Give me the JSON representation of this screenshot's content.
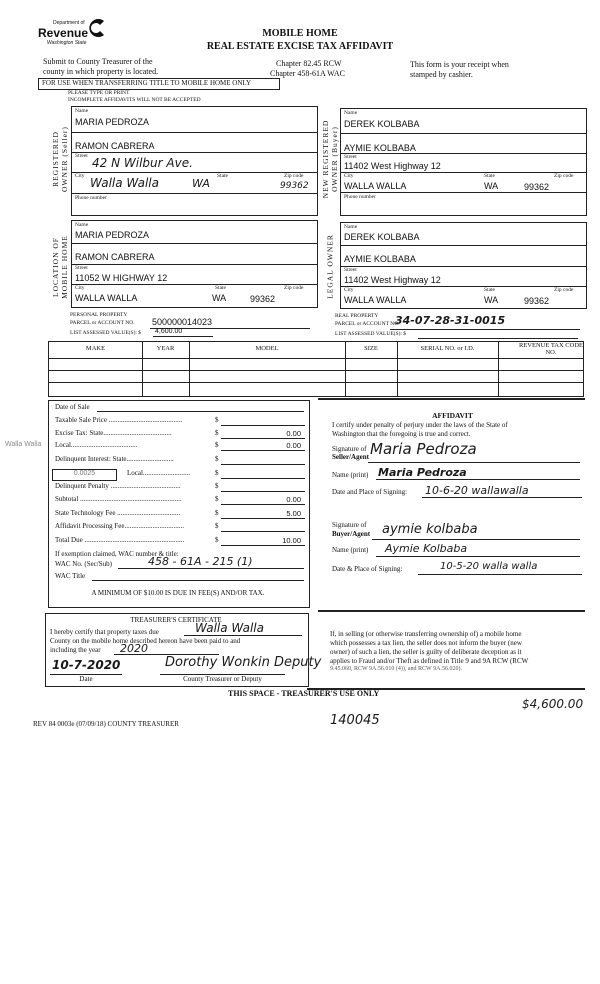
{
  "header": {
    "logo": {
      "line1": "Department of",
      "line2": "Revenue",
      "line3": "Washington State"
    },
    "title_line1": "MOBILE HOME",
    "title_line2": "REAL ESTATE EXCISE TAX AFFIDAVIT",
    "submit_line1": "Submit to County Treasurer of the",
    "submit_line2": "county in which property is located.",
    "chapter1": "Chapter 82.45 RCW",
    "chapter2": "Chapter 458-61A WAC",
    "receipt_line1": "This form is your receipt when",
    "receipt_line2": "stamped by cashier.",
    "transfer_notice": "FOR USE WHEN TRANSFERRING TITLE TO MOBILE HOME ONLY",
    "type_notice": "PLEASE TYPE OR PRINT",
    "incomplete_notice": "INCOMPLETE AFFIDAVITS WILL NOT BE ACCEPTED"
  },
  "labels": {
    "name": "Name",
    "street": "Street",
    "city": "City",
    "state": "State",
    "zip": "Zip code",
    "phone": "Phone number"
  },
  "seller": {
    "section_label_1": "REGISTERED",
    "section_label_2": "OWNER (Seller)",
    "name1": "MARIA PEDROZA",
    "name2": "RAMON CABRERA",
    "street": "42 N Wilbur Ave.",
    "city": "Walla Walla",
    "state": "WA",
    "zip": "99362",
    "phone": ""
  },
  "buyer": {
    "section_label_1": "NEW REGISTERED",
    "section_label_2": "OWNER (Buyer)",
    "name1": "DEREK KOLBABA",
    "name2": "AYMIE KOLBABA",
    "street": "11402 West Highway 12",
    "city": "WALLA WALLA",
    "state": "WA",
    "zip": "99362",
    "phone": ""
  },
  "location": {
    "section_label_1": "LOCATION OF",
    "section_label_2": "MOBILE HOME",
    "name1": "MARIA PEDROZA",
    "name2": "RAMON CABRERA",
    "street": "11052 W HIGHWAY 12",
    "city": "WALLA WALLA",
    "state": "WA",
    "zip": "99362"
  },
  "legal_owner": {
    "section_label": "LEGAL OWNER",
    "name1": "DEREK KOLBABA",
    "name2": "AYMIE KOLBABA",
    "street": "11402 West Highway 12",
    "city": "WALLA WALLA",
    "state": "WA",
    "zip": "99362"
  },
  "personal_property": {
    "heading": "PERSONAL PROPERTY",
    "parcel_label": "PARCEL or ACCOUNT NO.",
    "parcel_value": "500000014023",
    "assessed_label": "LIST ASSESSED VALUE(S): $",
    "assessed_value": "4,600.00"
  },
  "real_property": {
    "heading": "REAL PROPERTY",
    "parcel_label": "PARCEL or ACCOUNT NO.",
    "parcel_value": "34-07-28-31-0015",
    "assessed_label": "LIST ASSESSED VALUE(S): $",
    "assessed_value": ""
  },
  "home_table": {
    "columns": [
      "MAKE",
      "YEAR",
      "MODEL",
      "SIZE",
      "SERIAL NO. or I.D.",
      "REVENUE TAX CODE NO."
    ],
    "rows": [
      [
        "",
        "",
        "",
        "",
        "",
        ""
      ],
      [
        "",
        "",
        "",
        "",
        "",
        ""
      ],
      [
        "",
        "",
        "",
        "",
        "",
        ""
      ]
    ]
  },
  "fees": {
    "date_of_sale_label": "Date of Sale",
    "date_of_sale": "",
    "side_note": "Walla Walla",
    "rate_box": "0.0025",
    "items": [
      {
        "label": "Taxable Sale Price ..........................................",
        "value": ""
      },
      {
        "label": "Excise Tax:   State.......................................",
        "value": "0.00"
      },
      {
        "label": "                    Local......................................",
        "value": "0.00"
      },
      {
        "label": "Delinquent Interest:   State...........................",
        "value": ""
      },
      {
        "label": "                               Local...........................",
        "value": ""
      },
      {
        "label": "Delinquent Penalty ........................................",
        "value": ""
      },
      {
        "label": "Subtotal ..........................................................",
        "value": "0.00"
      },
      {
        "label": "State Technology Fee ....................................",
        "value": "5.00"
      },
      {
        "label": "Affidavit Processing Fee..................................",
        "value": ""
      },
      {
        "label": "Total Due .........................................................",
        "value": "10.00"
      }
    ],
    "dollar": "$",
    "exemption_label": "If exemption claimed, WAC number & title:",
    "wac_no_label": "WAC No. (Sec/Sub)",
    "wac_no_value": "458 - 61A - 215 (1)",
    "wac_title_label": "WAC Title",
    "wac_title_value": "",
    "minimum_notice": "A MINIMUM OF $10.00 IS DUE IN FEE(S) AND/OR TAX."
  },
  "affidavit": {
    "heading": "AFFIDAVIT",
    "certify_line1": "I certify under penalty of perjury under the laws of the State of",
    "certify_line2": "Washington that the foregoing is true and correct.",
    "seller_sig_label1": "Signature of",
    "seller_sig_label2": "Seller/Agent",
    "seller_signature": "Maria Pedroza",
    "name_print_label": "Name (print)",
    "seller_name_print": "Maria Pedroza",
    "seller_date_label": "Date and Place of Signing:",
    "seller_date_place": "10-6-20  wallawalla",
    "buyer_sig_label1": "Signature of",
    "buyer_sig_label2": "Buyer/Agent",
    "buyer_signature": "aymie kolbaba",
    "buyer_name_print": "Aymie Kolbaba",
    "buyer_date_label": "Date & Place of Signing:",
    "buyer_date_place": "10-5-20  walla walla"
  },
  "treasurer": {
    "heading": "TREASURER'S CERTIFICATE",
    "line1": "I hereby certify that property taxes due",
    "county_value": "Walla Walla",
    "line2": "County on the mobile home described hereon have been paid to and",
    "line3": "including the year",
    "year_value": "2020",
    "date_value": "10-7-2020",
    "date_label": "Date",
    "signature": "Dorothy Wonkin Deputy",
    "signer_label": "County Treasurer or Deputy",
    "use_only": "THIS SPACE - TREASURER'S USE ONLY"
  },
  "lien_notice": [
    "If, in selling (or otherwise transferring ownership of) a mobile home",
    "which possesses a tax lien, the seller does not inform the buyer (new",
    "owner) of such a lien, the seller is guilty of deliberate deception as it",
    "applies to Fraud and/or Theft as defined in Title 9 and 9A RCW (RCW",
    "9.45.060, RCW 9A.56.010 (4)), and RCW 9A.56.020)."
  ],
  "annotations": {
    "amount": "$4,600.00",
    "receipt_no": "140045"
  },
  "footer": {
    "form_id": "REV 84 0003e (07/09/18) COUNTY TREASURER"
  }
}
